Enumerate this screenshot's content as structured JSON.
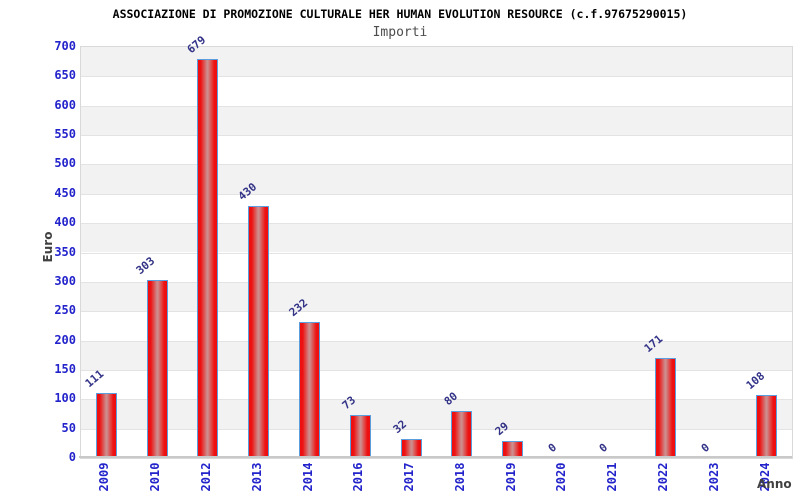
{
  "chart_data": {
    "type": "bar",
    "title": "ASSOCIAZIONE DI PROMOZIONE CULTURALE HER HUMAN EVOLUTION RESOURCE (c.f.97675290015)",
    "subtitle": "Importi",
    "xlabel": "Anno",
    "ylabel": "Euro",
    "categories": [
      "2009",
      "2010",
      "2012",
      "2013",
      "2014",
      "2016",
      "2017",
      "2018",
      "2019",
      "2020",
      "2021",
      "2022",
      "2023",
      "2024"
    ],
    "values": [
      111,
      303,
      679,
      430,
      232,
      73,
      32,
      80,
      29,
      0,
      0,
      171,
      0,
      108
    ],
    "ylim": [
      0,
      700
    ],
    "ytick_step": 50,
    "grid": true,
    "legend_position": "none",
    "colors": {
      "bar_fill_edge": "#ee1010",
      "bar_fill_center": "#cd8d8d",
      "bar_border": "#5b9ee0",
      "tick_label": "#2323cc",
      "value_label": "#333388",
      "axis_title": "#404040",
      "title": "#000000",
      "subtitle": "#4d4d4d",
      "band": "#f2f2f2",
      "grid": "#e3e3e3",
      "background": "#ffffff"
    }
  }
}
